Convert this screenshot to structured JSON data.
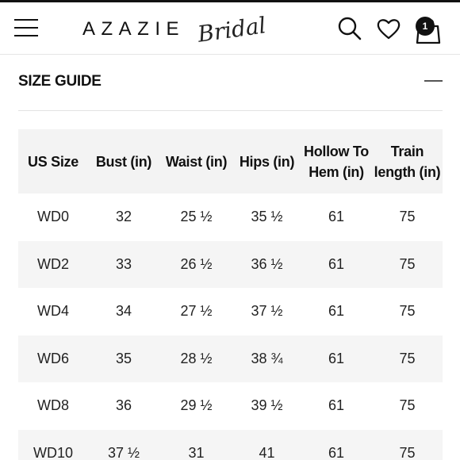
{
  "header": {
    "brand_name": "AZAZIE",
    "brand_sub": "Bridal",
    "bag_count": "1",
    "icons": [
      "menu-icon",
      "search-icon",
      "heart-icon",
      "shopping-bag-icon"
    ]
  },
  "section": {
    "title": "SIZE GUIDE"
  },
  "table": {
    "headers": [
      "US Size",
      "Bust (in)",
      "Waist (in)",
      "Hips (in)",
      "Hollow To Hem (in)",
      "Train length (in)"
    ],
    "rows": [
      [
        "WD0",
        "32",
        "25 ½",
        "35 ½",
        "61",
        "75"
      ],
      [
        "WD2",
        "33",
        "26 ½",
        "36 ½",
        "61",
        "75"
      ],
      [
        "WD4",
        "34",
        "27 ½",
        "37 ½",
        "61",
        "75"
      ],
      [
        "WD6",
        "35",
        "28 ½",
        "38 ¾",
        "61",
        "75"
      ],
      [
        "WD8",
        "36",
        "29 ½",
        "39 ½",
        "61",
        "75"
      ],
      [
        "WD10",
        "37 ½",
        "31",
        "41",
        "61",
        "75"
      ]
    ]
  },
  "colors": {
    "text": "#111111",
    "header_bg": "#f3f3f3",
    "stripe_bg": "#f5f5f5"
  }
}
